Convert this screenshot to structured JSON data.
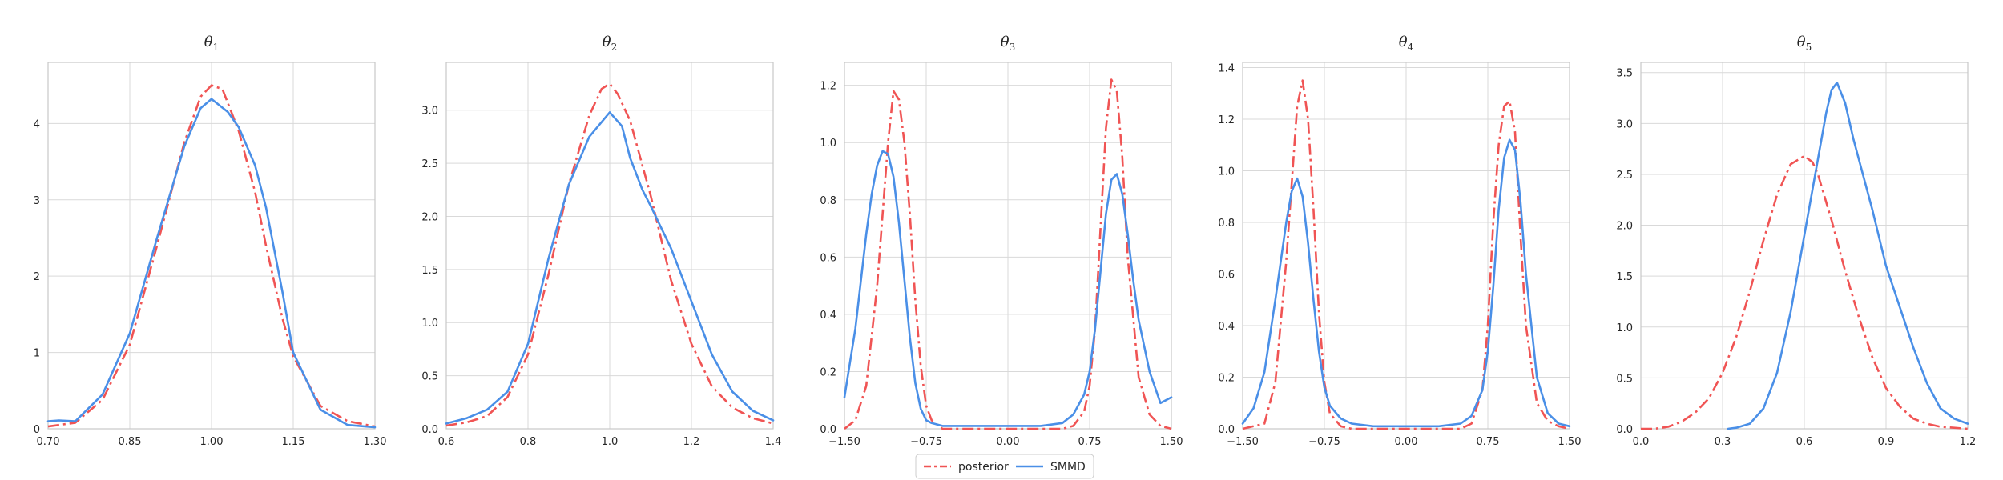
{
  "colors": {
    "posterior": "#f05454",
    "smmd": "#4a8fe7",
    "grid": "#d9d9d9",
    "frame": "#c7c7c7"
  },
  "legend": {
    "placement": "bottom-center",
    "entries": [
      {
        "key": "posterior",
        "label": "posterior",
        "style": "dash-dot"
      },
      {
        "key": "smmd",
        "label": "SMMD",
        "style": "solid"
      }
    ]
  },
  "chart_data": [
    {
      "type": "line",
      "title": {
        "symbol": "θ",
        "sub": "1"
      },
      "xlim": [
        0.7,
        1.3
      ],
      "ylim": [
        0,
        4.8
      ],
      "xticks": [
        0.7,
        0.85,
        1.0,
        1.15,
        1.3
      ],
      "xtick_labels": [
        "0.70",
        "0.85",
        "1.00",
        "1.15",
        "1.30"
      ],
      "yticks": [
        0,
        1,
        2,
        3,
        4
      ],
      "ytick_labels": [
        "0",
        "1",
        "2",
        "3",
        "4"
      ],
      "grid": true,
      "series": [
        {
          "key": "posterior",
          "x": [
            0.7,
            0.75,
            0.8,
            0.85,
            0.9,
            0.95,
            0.98,
            1.0,
            1.02,
            1.05,
            1.08,
            1.1,
            1.13,
            1.15,
            1.2,
            1.25,
            1.3
          ],
          "y": [
            0.03,
            0.08,
            0.38,
            1.1,
            2.4,
            3.75,
            4.35,
            4.5,
            4.45,
            3.9,
            3.1,
            2.4,
            1.45,
            0.95,
            0.3,
            0.1,
            0.03
          ]
        },
        {
          "key": "smmd",
          "x": [
            0.7,
            0.72,
            0.75,
            0.8,
            0.85,
            0.9,
            0.95,
            0.98,
            1.0,
            1.03,
            1.05,
            1.08,
            1.1,
            1.13,
            1.15,
            1.2,
            1.25,
            1.3
          ],
          "y": [
            0.1,
            0.11,
            0.1,
            0.45,
            1.25,
            2.5,
            3.7,
            4.2,
            4.32,
            4.15,
            3.95,
            3.45,
            2.9,
            1.8,
            1.0,
            0.25,
            0.05,
            0.02
          ]
        }
      ]
    },
    {
      "type": "line",
      "title": {
        "symbol": "θ",
        "sub": "2"
      },
      "xlim": [
        0.6,
        1.4
      ],
      "ylim": [
        0,
        3.45
      ],
      "xticks": [
        0.6,
        0.8,
        1.0,
        1.2,
        1.4
      ],
      "xtick_labels": [
        "0.6",
        "0.8",
        "1.0",
        "1.2",
        "1.4"
      ],
      "yticks": [
        0,
        0.5,
        1.0,
        1.5,
        2.0,
        2.5,
        3.0
      ],
      "ytick_labels": [
        "0.0",
        "0.5",
        "1.0",
        "1.5",
        "2.0",
        "2.5",
        "3.0"
      ],
      "grid": true,
      "series": [
        {
          "key": "posterior",
          "x": [
            0.6,
            0.65,
            0.7,
            0.75,
            0.8,
            0.85,
            0.9,
            0.95,
            0.98,
            1.0,
            1.02,
            1.05,
            1.1,
            1.15,
            1.2,
            1.25,
            1.3,
            1.35,
            1.4
          ],
          "y": [
            0.03,
            0.06,
            0.12,
            0.3,
            0.7,
            1.45,
            2.3,
            2.95,
            3.2,
            3.25,
            3.15,
            2.9,
            2.2,
            1.4,
            0.8,
            0.4,
            0.2,
            0.1,
            0.05
          ]
        },
        {
          "key": "smmd",
          "x": [
            0.6,
            0.65,
            0.7,
            0.75,
            0.8,
            0.85,
            0.9,
            0.95,
            1.0,
            1.03,
            1.05,
            1.08,
            1.1,
            1.15,
            1.2,
            1.25,
            1.3,
            1.35,
            1.4
          ],
          "y": [
            0.05,
            0.1,
            0.18,
            0.35,
            0.8,
            1.6,
            2.3,
            2.75,
            2.98,
            2.85,
            2.55,
            2.25,
            2.1,
            1.7,
            1.2,
            0.7,
            0.35,
            0.17,
            0.08
          ]
        }
      ]
    },
    {
      "type": "line",
      "title": {
        "symbol": "θ",
        "sub": "3"
      },
      "xlim": [
        -1.5,
        1.5
      ],
      "ylim": [
        0,
        1.28
      ],
      "xticks": [
        -1.5,
        -0.75,
        0.0,
        0.75,
        1.5
      ],
      "xtick_labels": [
        "−1.50",
        "−0.75",
        "0.00",
        "0.75",
        "1.50"
      ],
      "yticks": [
        0,
        0.2,
        0.4,
        0.6,
        0.8,
        1.0,
        1.2
      ],
      "ytick_labels": [
        "0.0",
        "0.2",
        "0.4",
        "0.6",
        "0.8",
        "1.0",
        "1.2"
      ],
      "grid": true,
      "series": [
        {
          "key": "posterior",
          "x": [
            -1.5,
            -1.4,
            -1.3,
            -1.2,
            -1.1,
            -1.05,
            -1.0,
            -0.95,
            -0.9,
            -0.85,
            -0.8,
            -0.75,
            -0.7,
            -0.6,
            -0.5,
            0.0,
            0.5,
            0.6,
            0.7,
            0.75,
            0.8,
            0.85,
            0.9,
            0.95,
            1.0,
            1.05,
            1.1,
            1.2,
            1.3,
            1.4,
            1.5
          ],
          "y": [
            0.0,
            0.03,
            0.15,
            0.5,
            1.0,
            1.18,
            1.15,
            1.0,
            0.75,
            0.45,
            0.22,
            0.08,
            0.03,
            0.0,
            0.0,
            0.0,
            0.0,
            0.01,
            0.06,
            0.15,
            0.35,
            0.7,
            1.05,
            1.22,
            1.18,
            0.95,
            0.6,
            0.18,
            0.05,
            0.01,
            0.0
          ]
        },
        {
          "key": "smmd",
          "x": [
            -1.5,
            -1.4,
            -1.3,
            -1.25,
            -1.2,
            -1.15,
            -1.1,
            -1.05,
            -1.0,
            -0.95,
            -0.9,
            -0.85,
            -0.8,
            -0.75,
            -0.7,
            -0.6,
            -0.5,
            -0.3,
            0.0,
            0.3,
            0.5,
            0.6,
            0.7,
            0.75,
            0.8,
            0.85,
            0.9,
            0.95,
            1.0,
            1.05,
            1.1,
            1.15,
            1.2,
            1.3,
            1.4,
            1.5
          ],
          "y": [
            0.11,
            0.35,
            0.68,
            0.82,
            0.92,
            0.97,
            0.96,
            0.88,
            0.72,
            0.52,
            0.32,
            0.16,
            0.07,
            0.03,
            0.02,
            0.01,
            0.01,
            0.01,
            0.01,
            0.01,
            0.02,
            0.05,
            0.12,
            0.2,
            0.35,
            0.55,
            0.75,
            0.87,
            0.89,
            0.82,
            0.68,
            0.52,
            0.38,
            0.2,
            0.09,
            0.11
          ]
        }
      ]
    },
    {
      "type": "line",
      "title": {
        "symbol": "θ",
        "sub": "4"
      },
      "xlim": [
        -1.5,
        1.5
      ],
      "ylim": [
        0,
        1.42
      ],
      "xticks": [
        -1.5,
        -0.75,
        0.0,
        0.75,
        1.5
      ],
      "xtick_labels": [
        "−1.50",
        "−0.75",
        "0.00",
        "0.75",
        "1.50"
      ],
      "yticks": [
        0,
        0.2,
        0.4,
        0.6,
        0.8,
        1.0,
        1.2,
        1.4
      ],
      "ytick_labels": [
        "0.0",
        "0.2",
        "0.4",
        "0.6",
        "0.8",
        "1.0",
        "1.2",
        "1.4"
      ],
      "grid": true,
      "series": [
        {
          "key": "posterior",
          "x": [
            -1.5,
            -1.3,
            -1.2,
            -1.1,
            -1.05,
            -1.0,
            -0.95,
            -0.9,
            -0.85,
            -0.8,
            -0.75,
            -0.7,
            -0.6,
            -0.5,
            0.0,
            0.5,
            0.6,
            0.7,
            0.75,
            0.8,
            0.85,
            0.9,
            0.95,
            1.0,
            1.05,
            1.1,
            1.2,
            1.3,
            1.4,
            1.5
          ],
          "y": [
            0.0,
            0.02,
            0.18,
            0.65,
            0.95,
            1.25,
            1.35,
            1.2,
            0.85,
            0.45,
            0.18,
            0.06,
            0.01,
            0.0,
            0.0,
            0.0,
            0.02,
            0.15,
            0.4,
            0.8,
            1.1,
            1.25,
            1.27,
            1.15,
            0.75,
            0.4,
            0.1,
            0.03,
            0.01,
            0.0
          ]
        },
        {
          "key": "smmd",
          "x": [
            -1.5,
            -1.4,
            -1.3,
            -1.2,
            -1.1,
            -1.05,
            -1.0,
            -0.95,
            -0.9,
            -0.85,
            -0.8,
            -0.75,
            -0.7,
            -0.6,
            -0.5,
            -0.3,
            0.0,
            0.3,
            0.5,
            0.6,
            0.7,
            0.75,
            0.8,
            0.85,
            0.9,
            0.95,
            1.0,
            1.05,
            1.1,
            1.2,
            1.3,
            1.4,
            1.5
          ],
          "y": [
            0.02,
            0.08,
            0.22,
            0.5,
            0.8,
            0.92,
            0.97,
            0.9,
            0.72,
            0.5,
            0.3,
            0.16,
            0.09,
            0.04,
            0.02,
            0.01,
            0.01,
            0.01,
            0.02,
            0.05,
            0.15,
            0.3,
            0.55,
            0.85,
            1.05,
            1.12,
            1.08,
            0.88,
            0.6,
            0.2,
            0.06,
            0.02,
            0.01
          ]
        }
      ]
    },
    {
      "type": "line",
      "title": {
        "symbol": "θ",
        "sub": "5"
      },
      "xlim": [
        0.0,
        1.2
      ],
      "ylim": [
        0,
        3.6
      ],
      "xticks": [
        0.0,
        0.3,
        0.6,
        0.9,
        1.2
      ],
      "xtick_labels": [
        "0.0",
        "0.3",
        "0.6",
        "0.9",
        "1.2"
      ],
      "yticks": [
        0,
        0.5,
        1.0,
        1.5,
        2.0,
        2.5,
        3.0,
        3.5
      ],
      "ytick_labels": [
        "0.0",
        "0.5",
        "1.0",
        "1.5",
        "2.0",
        "2.5",
        "3.0",
        "3.5"
      ],
      "grid": true,
      "series": [
        {
          "key": "posterior",
          "x": [
            0.0,
            0.05,
            0.1,
            0.15,
            0.2,
            0.25,
            0.3,
            0.35,
            0.4,
            0.45,
            0.5,
            0.55,
            0.6,
            0.63,
            0.65,
            0.7,
            0.75,
            0.8,
            0.85,
            0.9,
            0.95,
            1.0,
            1.05,
            1.1,
            1.15,
            1.2
          ],
          "y": [
            0.0,
            0.0,
            0.02,
            0.07,
            0.16,
            0.3,
            0.55,
            0.9,
            1.35,
            1.85,
            2.3,
            2.6,
            2.68,
            2.62,
            2.5,
            2.05,
            1.55,
            1.1,
            0.7,
            0.4,
            0.22,
            0.1,
            0.05,
            0.02,
            0.01,
            0.0
          ]
        },
        {
          "key": "smmd",
          "x": [
            0.32,
            0.35,
            0.4,
            0.45,
            0.5,
            0.55,
            0.6,
            0.65,
            0.68,
            0.7,
            0.72,
            0.75,
            0.78,
            0.8,
            0.85,
            0.9,
            0.95,
            1.0,
            1.05,
            1.1,
            1.15,
            1.2
          ],
          "y": [
            0.0,
            0.01,
            0.05,
            0.2,
            0.55,
            1.15,
            1.9,
            2.65,
            3.1,
            3.33,
            3.4,
            3.2,
            2.85,
            2.65,
            2.15,
            1.6,
            1.2,
            0.8,
            0.45,
            0.2,
            0.1,
            0.05
          ]
        }
      ]
    }
  ]
}
